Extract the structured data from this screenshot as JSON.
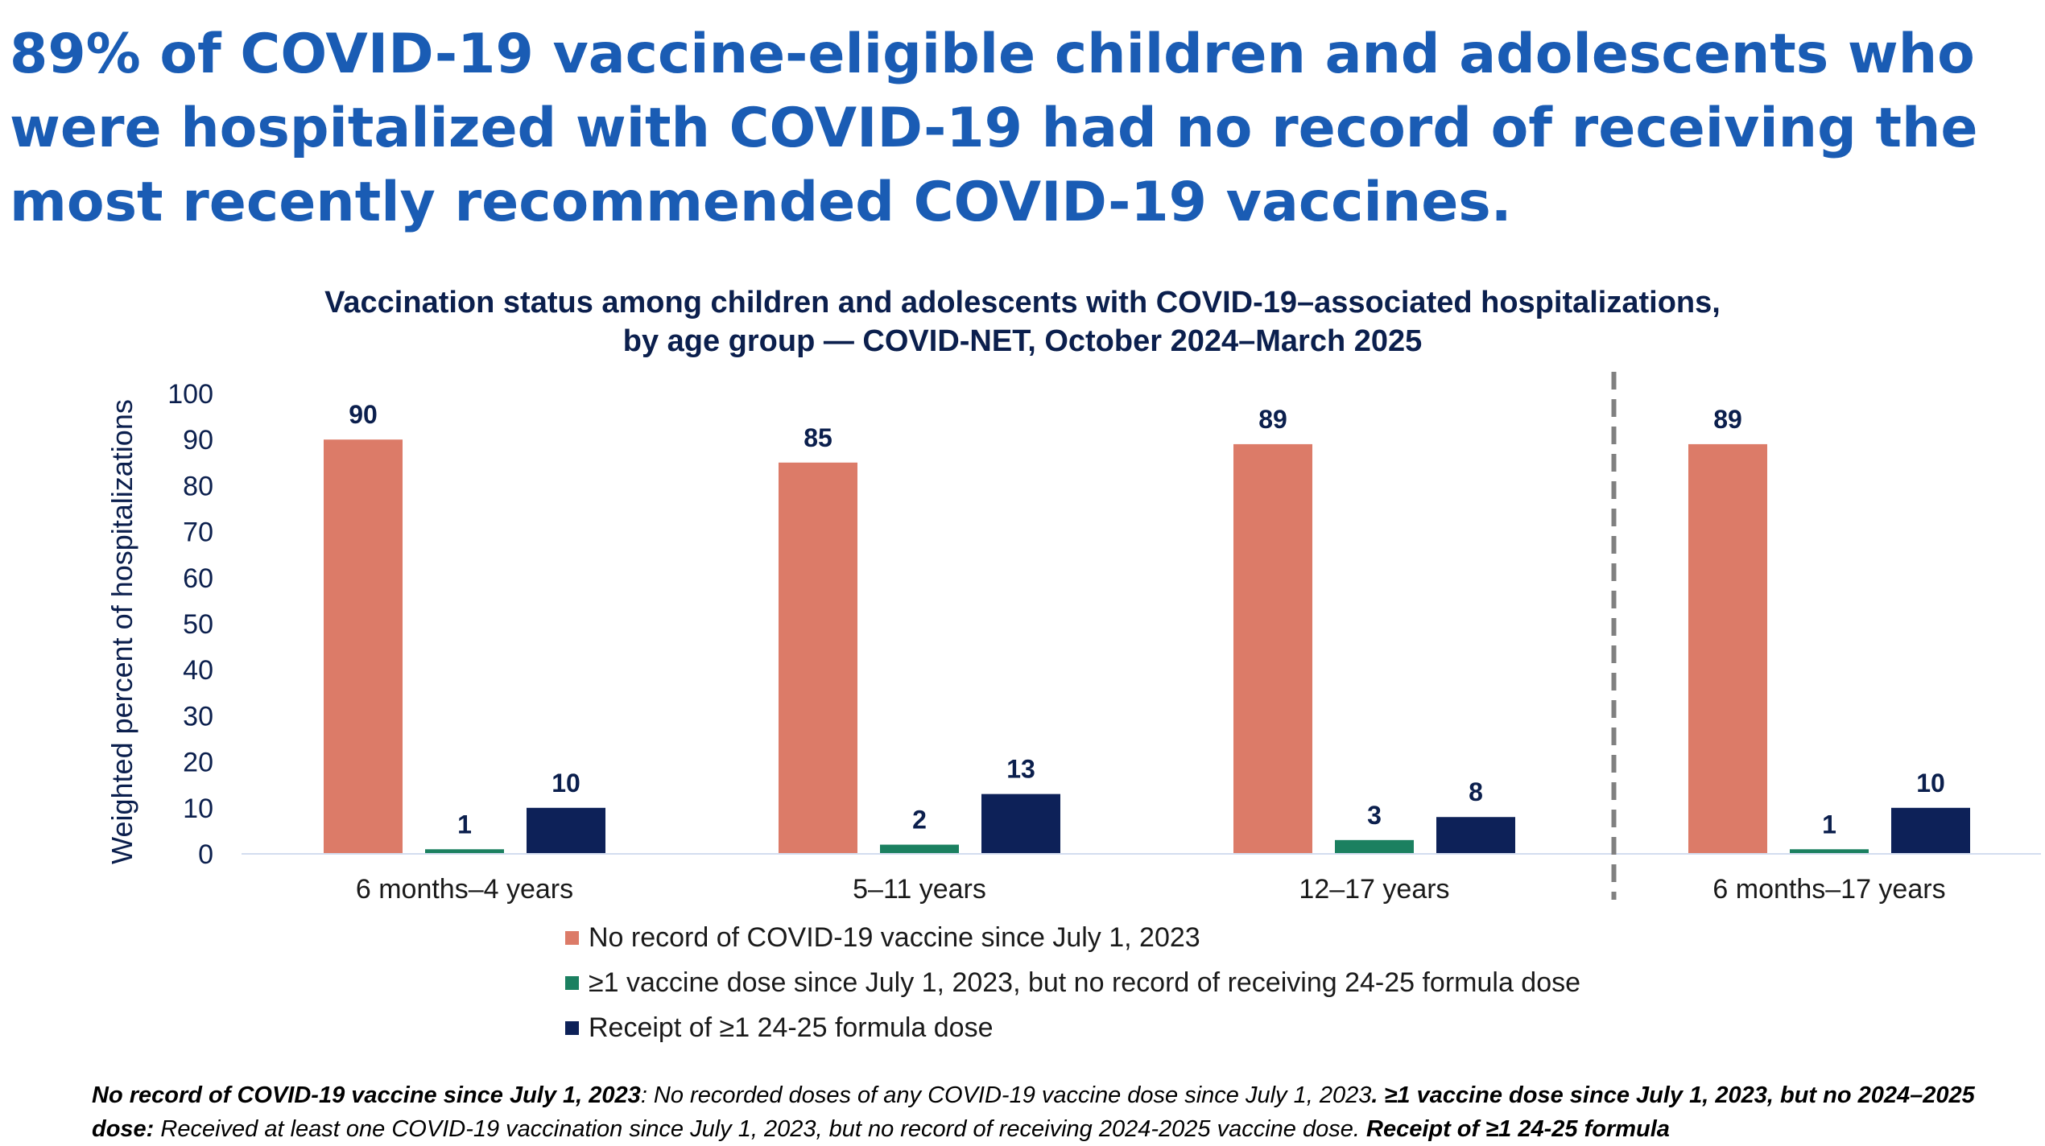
{
  "headline": "89% of COVID-19 vaccine-eligible children and adolescents who were hospitalized with COVID-19 had no record of receiving the most recently recommended COVID-19 vaccines.",
  "colors": {
    "headline": "#1a5cb4",
    "no_record": "#dc7b68",
    "one_dose": "#1b8060",
    "receipt": "#0d2158",
    "axis_text": "#0b1f4d",
    "divider": "#808080"
  },
  "chart_data": {
    "type": "bar",
    "title_line1": "Vaccination status among children and adolescents with COVID-19–associated hospitalizations,",
    "title_line2": "by age group — COVID-NET, October 2024–March 2025",
    "xlabel": "",
    "ylabel": "Weighted percent of hospitalizations",
    "ylim": [
      0,
      100
    ],
    "yticks": [
      0,
      10,
      20,
      30,
      40,
      50,
      60,
      70,
      80,
      90,
      100
    ],
    "categories": [
      "6 months–4 years",
      "5–11 years",
      "12–17 years",
      "6 months–17 years"
    ],
    "series": [
      {
        "name": "No record of COVID-19 vaccine since July 1, 2023",
        "color": "#dc7b68",
        "values": [
          90,
          85,
          89,
          89
        ]
      },
      {
        "name": "≥1 vaccine dose since July 1, 2023, but no record of receiving 24-25 formula dose",
        "color": "#1b8060",
        "values": [
          1,
          2,
          3,
          1
        ]
      },
      {
        "name": "Receipt of ≥1 24-25 formula dose",
        "color": "#0d2158",
        "values": [
          10,
          13,
          8,
          10
        ]
      }
    ],
    "data_labels": true,
    "divider_before_category": 3,
    "legend_position": "bottom-center",
    "grid": false
  },
  "footnote": {
    "term1": "No record of COVID-19 vaccine since July 1, 2023",
    "text1": ": No recorded doses of any COVID-19 vaccine dose since July 1, 2023",
    "term2": ". ≥1 vaccine dose since July 1, 2023, but no 2024–2025 dose:",
    "text2": " Received at least one COVID-19 vaccination since July 1, 2023, but no record of receiving 2024-2025 vaccine dose.",
    "term3": " Receipt of ≥1 24-25 formula"
  }
}
